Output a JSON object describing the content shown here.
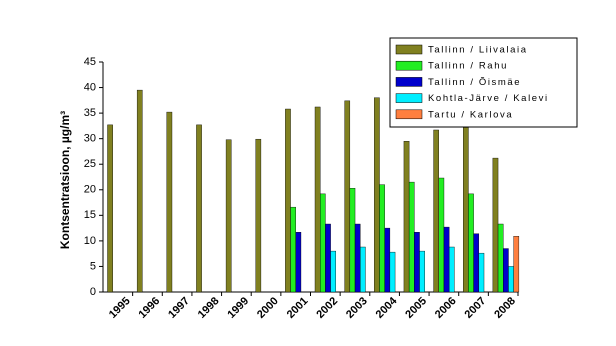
{
  "chart_data": {
    "type": "bar",
    "y_label": "Kontsentratsioon, µg/m³",
    "categories": [
      "1995",
      "1996",
      "1997",
      "1998",
      "1999",
      "2000",
      "2001",
      "2002",
      "2003",
      "2004",
      "2005",
      "2006",
      "2007",
      "2008"
    ],
    "series": [
      {
        "name": "Tallinn / Liivalaia",
        "color": "#808020",
        "values": [
          32.7,
          39.5,
          35.2,
          32.7,
          29.8,
          29.9,
          35.8,
          36.2,
          37.4,
          38.0,
          29.5,
          31.7,
          32.2,
          26.2
        ]
      },
      {
        "name": "Tallinn / Rahu",
        "color": "#22ee22",
        "values": [
          null,
          null,
          null,
          null,
          null,
          null,
          16.6,
          19.2,
          20.3,
          21.0,
          21.5,
          22.3,
          19.2,
          13.3
        ]
      },
      {
        "name": "Tallinn / Õismäe",
        "color": "#0000cc",
        "values": [
          null,
          null,
          null,
          null,
          null,
          null,
          11.7,
          13.3,
          13.3,
          12.5,
          11.7,
          12.7,
          11.4,
          8.5
        ]
      },
      {
        "name": "Kohtla-Järve / Kalevi",
        "color": "#00eeff",
        "values": [
          null,
          null,
          null,
          null,
          null,
          null,
          null,
          8.0,
          8.8,
          7.8,
          8.0,
          8.8,
          7.6,
          5.0
        ]
      },
      {
        "name": "Tartu / Karlova",
        "color": "#ff7f3f",
        "values": [
          null,
          null,
          null,
          null,
          null,
          null,
          null,
          null,
          null,
          null,
          null,
          null,
          null,
          10.9
        ]
      }
    ],
    "ylim": [
      0,
      45
    ],
    "yticks": [
      0,
      5,
      10,
      15,
      20,
      25,
      30,
      35,
      40,
      45
    ],
    "grid": false,
    "legend": "upper right"
  }
}
